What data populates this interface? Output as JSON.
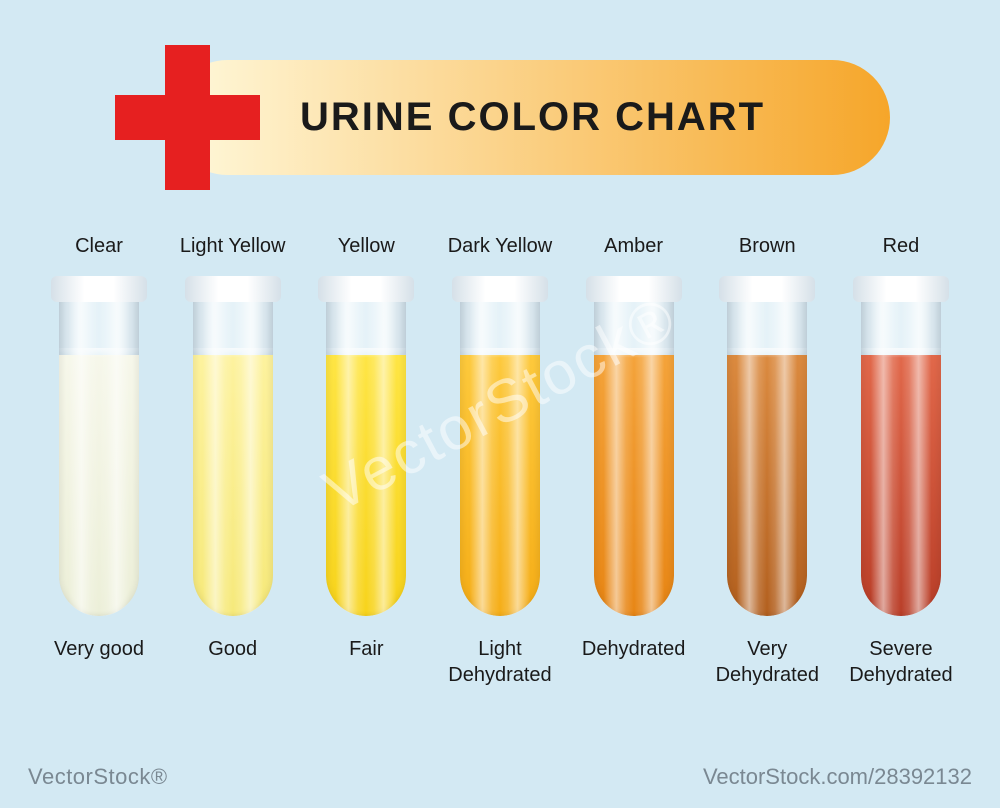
{
  "title": "URINE COLOR CHART",
  "background_color": "#d3e9f3",
  "cross_color": "#e62020",
  "banner_gradient_start": "#fff9dc",
  "banner_gradient_end": "#f6a62a",
  "title_fontsize": 40,
  "label_fontsize": 20,
  "label_color": "#1a1a1a",
  "liquid_fill_height_pct": 82,
  "tubes": [
    {
      "color_label": "Clear",
      "status": "Very good",
      "liquid_color_top": "#f6f7ea",
      "liquid_color_bottom": "#ecefd8"
    },
    {
      "color_label": "Light Yellow",
      "status": "Good",
      "liquid_color_top": "#fdf29e",
      "liquid_color_bottom": "#f6e97a"
    },
    {
      "color_label": "Yellow",
      "status": "Fair",
      "liquid_color_top": "#fee544",
      "liquid_color_bottom": "#f7d31b"
    },
    {
      "color_label": "Dark Yellow",
      "status": "Light\nDehydrated",
      "liquid_color_top": "#fdc93c",
      "liquid_color_bottom": "#f5ad17"
    },
    {
      "color_label": "Amber",
      "status": "Dehydrated",
      "liquid_color_top": "#f4a33a",
      "liquid_color_bottom": "#e78514"
    },
    {
      "color_label": "Brown",
      "status": "Very\nDehydrated",
      "liquid_color_top": "#db8a3f",
      "liquid_color_bottom": "#b25f1e"
    },
    {
      "color_label": "Red",
      "status": "Severe\nDehydrated",
      "liquid_color_top": "#e1684a",
      "liquid_color_bottom": "#b93e28"
    }
  ],
  "watermark_left": "VectorStock®",
  "watermark_right": "VectorStock.com/28392132",
  "watermark_center": "VectorStock®"
}
